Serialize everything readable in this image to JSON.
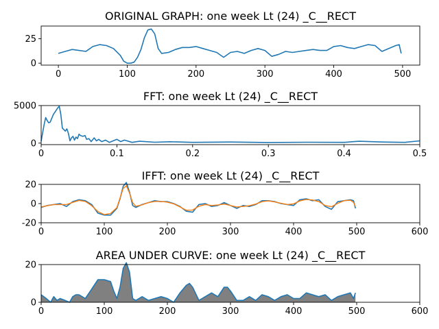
{
  "chart_data": [
    {
      "type": "line",
      "title": "ORIGINAL GRAPH: one week Lt (24) _C__RECT",
      "xlim": [
        -25,
        525
      ],
      "ylim": [
        -2,
        38
      ],
      "xticks": [
        0,
        100,
        200,
        300,
        400,
        500
      ],
      "yticks": [
        0,
        25
      ],
      "series": [
        {
          "color": "#1f77b4",
          "x": [
            0,
            10,
            20,
            30,
            40,
            50,
            60,
            70,
            80,
            90,
            95,
            100,
            105,
            110,
            115,
            120,
            125,
            130,
            135,
            140,
            145,
            150,
            160,
            170,
            180,
            190,
            200,
            210,
            220,
            230,
            240,
            250,
            260,
            270,
            280,
            290,
            300,
            310,
            320,
            330,
            340,
            350,
            360,
            370,
            380,
            390,
            400,
            410,
            420,
            430,
            440,
            450,
            460,
            470,
            480,
            490,
            495,
            498
          ],
          "y": [
            10,
            12,
            14,
            13,
            12,
            17,
            19,
            18,
            15,
            8,
            2,
            0,
            0,
            1,
            6,
            14,
            26,
            34,
            35,
            30,
            15,
            10,
            11,
            14,
            16,
            16,
            17,
            15,
            13,
            11,
            6,
            11,
            12,
            10,
            13,
            15,
            13,
            7,
            9,
            12,
            11,
            12,
            13,
            14,
            13,
            13,
            17,
            18,
            16,
            15,
            17,
            19,
            18,
            12,
            15,
            18,
            19,
            10
          ]
        }
      ]
    },
    {
      "type": "line",
      "title": "FFT: one week Lt (24) _C__RECT",
      "xlim": [
        0,
        0.5
      ],
      "ylim": [
        -200,
        5000
      ],
      "xticks": [
        0.0,
        0.1,
        0.2,
        0.3,
        0.4,
        0.5
      ],
      "yticks": [
        0,
        5000
      ],
      "series": [
        {
          "color": "#1f77b4",
          "x": [
            0,
            0.002,
            0.004,
            0.006,
            0.008,
            0.01,
            0.012,
            0.014,
            0.016,
            0.018,
            0.02,
            0.022,
            0.024,
            0.026,
            0.028,
            0.03,
            0.032,
            0.034,
            0.036,
            0.038,
            0.04,
            0.042,
            0.044,
            0.046,
            0.048,
            0.05,
            0.052,
            0.055,
            0.058,
            0.06,
            0.063,
            0.066,
            0.07,
            0.073,
            0.076,
            0.08,
            0.085,
            0.09,
            0.095,
            0.1,
            0.105,
            0.11,
            0.12,
            0.13,
            0.15,
            0.17,
            0.2,
            0.25,
            0.3,
            0.35,
            0.4,
            0.42,
            0.45,
            0.48,
            0.5
          ],
          "y": [
            250,
            1400,
            2500,
            3400,
            3000,
            2700,
            2800,
            3300,
            3800,
            4100,
            4400,
            4700,
            4900,
            3800,
            2000,
            1800,
            1600,
            1900,
            1300,
            300,
            700,
            900,
            400,
            800,
            600,
            1200,
            1000,
            900,
            1000,
            500,
            600,
            200,
            700,
            300,
            500,
            200,
            400,
            100,
            300,
            500,
            200,
            400,
            100,
            250,
            120,
            180,
            100,
            150,
            80,
            120,
            100,
            250,
            150,
            100,
            300
          ]
        }
      ]
    },
    {
      "type": "line",
      "title": "IFFT: one week Lt (24) _C__RECT",
      "xlim": [
        0,
        600
      ],
      "ylim": [
        -20,
        20
      ],
      "xticks": [
        0,
        100,
        200,
        300,
        400,
        500,
        600
      ],
      "yticks": [
        -20,
        0,
        20
      ],
      "series": [
        {
          "color": "#1f77b4",
          "x": [
            0,
            10,
            20,
            30,
            40,
            50,
            60,
            70,
            80,
            90,
            100,
            110,
            120,
            125,
            130,
            135,
            140,
            145,
            150,
            160,
            170,
            180,
            190,
            200,
            210,
            220,
            230,
            240,
            250,
            260,
            270,
            280,
            290,
            300,
            310,
            320,
            330,
            340,
            350,
            360,
            370,
            380,
            390,
            400,
            410,
            420,
            430,
            440,
            450,
            460,
            470,
            480,
            490,
            495,
            498
          ],
          "y": [
            -4,
            -2,
            -1,
            0,
            -3,
            2,
            4,
            3,
            -1,
            -10,
            -12,
            -12,
            -5,
            5,
            18,
            22,
            12,
            -2,
            -4,
            -1,
            1,
            3,
            2,
            2,
            0,
            -3,
            -8,
            -9,
            -1,
            0,
            -3,
            -2,
            1,
            -2,
            -5,
            -2,
            -3,
            -1,
            3,
            3,
            2,
            0,
            -1,
            -2,
            4,
            5,
            3,
            4,
            -3,
            -6,
            2,
            3,
            4,
            3,
            -5
          ]
        }
      ]
    },
    {
      "type": "area",
      "title": "AREA UNDER CURVE: one week Lt (24) _C__RECT",
      "xlim": [
        0,
        600
      ],
      "ylim": [
        0,
        20
      ],
      "xticks": [
        0,
        100,
        200,
        300,
        400,
        500,
        600
      ],
      "yticks": [
        0,
        20
      ],
      "series": [
        {
          "color": "#1f77b4",
          "fill": "#808080",
          "x": [
            0,
            8,
            15,
            20,
            25,
            30,
            38,
            45,
            50,
            55,
            60,
            70,
            80,
            90,
            100,
            110,
            115,
            120,
            125,
            130,
            135,
            140,
            145,
            150,
            160,
            170,
            180,
            190,
            200,
            210,
            220,
            230,
            235,
            240,
            250,
            260,
            270,
            280,
            290,
            295,
            300,
            310,
            320,
            330,
            340,
            350,
            360,
            370,
            380,
            390,
            400,
            410,
            420,
            430,
            440,
            450,
            460,
            470,
            480,
            490,
            495,
            498
          ],
          "y": [
            4,
            2,
            0,
            3,
            1,
            2,
            1,
            0,
            3,
            4,
            4,
            2,
            7,
            12,
            12,
            11,
            6,
            2,
            8,
            18,
            21,
            16,
            2,
            1,
            3,
            1,
            2,
            3,
            2,
            0,
            5,
            9,
            10,
            8,
            1,
            3,
            5,
            3,
            8,
            8,
            6,
            1,
            1,
            3,
            1,
            4,
            3,
            1,
            3,
            4,
            2,
            2,
            5,
            4,
            3,
            4,
            1,
            3,
            4,
            5,
            2,
            5
          ]
        }
      ]
    }
  ]
}
